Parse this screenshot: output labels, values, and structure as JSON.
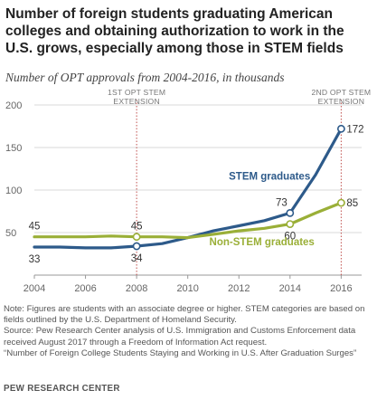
{
  "title": "Number of foreign students graduating American colleges and obtaining authorization to work in the U.S. grows, especially among those in STEM fields",
  "subtitle": "Number of OPT approvals from 2004-2016, in thousands",
  "colors": {
    "stem": "#2d5a8a",
    "nonstem": "#9aaf37",
    "grid": "#d8d8d8",
    "marker_line": "#c0504d"
  },
  "chart_data": {
    "type": "line",
    "x": [
      2004,
      2005,
      2006,
      2007,
      2008,
      2009,
      2010,
      2011,
      2012,
      2013,
      2014,
      2015,
      2016
    ],
    "ylim": [
      0,
      200
    ],
    "xlim": [
      2004,
      2016.8
    ],
    "yticks": [
      "50",
      "100",
      "150",
      "200"
    ],
    "ytick_values": [
      50,
      100,
      150,
      200
    ],
    "xticks": [
      "2004",
      "2006",
      "2008",
      "2010",
      "2012",
      "2014",
      "2016"
    ],
    "xtick_values": [
      2004,
      2006,
      2008,
      2010,
      2012,
      2014,
      2016
    ],
    "grid": true,
    "series": [
      {
        "name": "STEM graduates",
        "values": [
          33,
          33,
          32,
          32,
          34,
          37,
          44,
          52,
          58,
          64,
          73,
          118,
          172
        ],
        "labels": [
          {
            "x": 2004,
            "text": "33",
            "pos": "below"
          },
          {
            "x": 2008,
            "text": "34",
            "pos": "below"
          },
          {
            "x": 2014,
            "text": "73",
            "pos": "above-left"
          },
          {
            "x": 2016,
            "text": "172",
            "pos": "right"
          }
        ],
        "markers": [
          2008,
          2014,
          2016
        ]
      },
      {
        "name": "Non-STEM graduates",
        "values": [
          45,
          45,
          45,
          46,
          45,
          45,
          44,
          48,
          52,
          55,
          60,
          73,
          85
        ],
        "labels": [
          {
            "x": 2004,
            "text": "45",
            "pos": "above"
          },
          {
            "x": 2008,
            "text": "45",
            "pos": "above"
          },
          {
            "x": 2014,
            "text": "60",
            "pos": "below"
          },
          {
            "x": 2016,
            "text": "85",
            "pos": "right"
          }
        ],
        "markers": [
          2008,
          2014,
          2016
        ]
      }
    ],
    "annotations": [
      {
        "x": 2008,
        "lines": [
          "1ST OPT STEM",
          "EXTENSION"
        ]
      },
      {
        "x": 2016,
        "lines": [
          "2ND  OPT STEM",
          "EXTENSION"
        ]
      }
    ],
    "series_labels": [
      {
        "series": 0,
        "text": "STEM graduates",
        "x": 2013.2,
        "y": 112
      },
      {
        "series": 1,
        "text": "Non-STEM graduates",
        "x": 2012.9,
        "y": 35
      }
    ]
  },
  "notes": [
    "Note: Figures are students with an associate degree or higher. STEM categories are based on fields outlined by the U.S. Department of Homeland Security.",
    "Source: Pew Research Center analysis of U.S. Immigration and Customs Enforcement data received August 2017 through a Freedom of Information Act request.",
    "“Number of Foreign College Students Staying and Working in U.S. After Graduation Surges”"
  ],
  "footer": "PEW RESEARCH CENTER"
}
